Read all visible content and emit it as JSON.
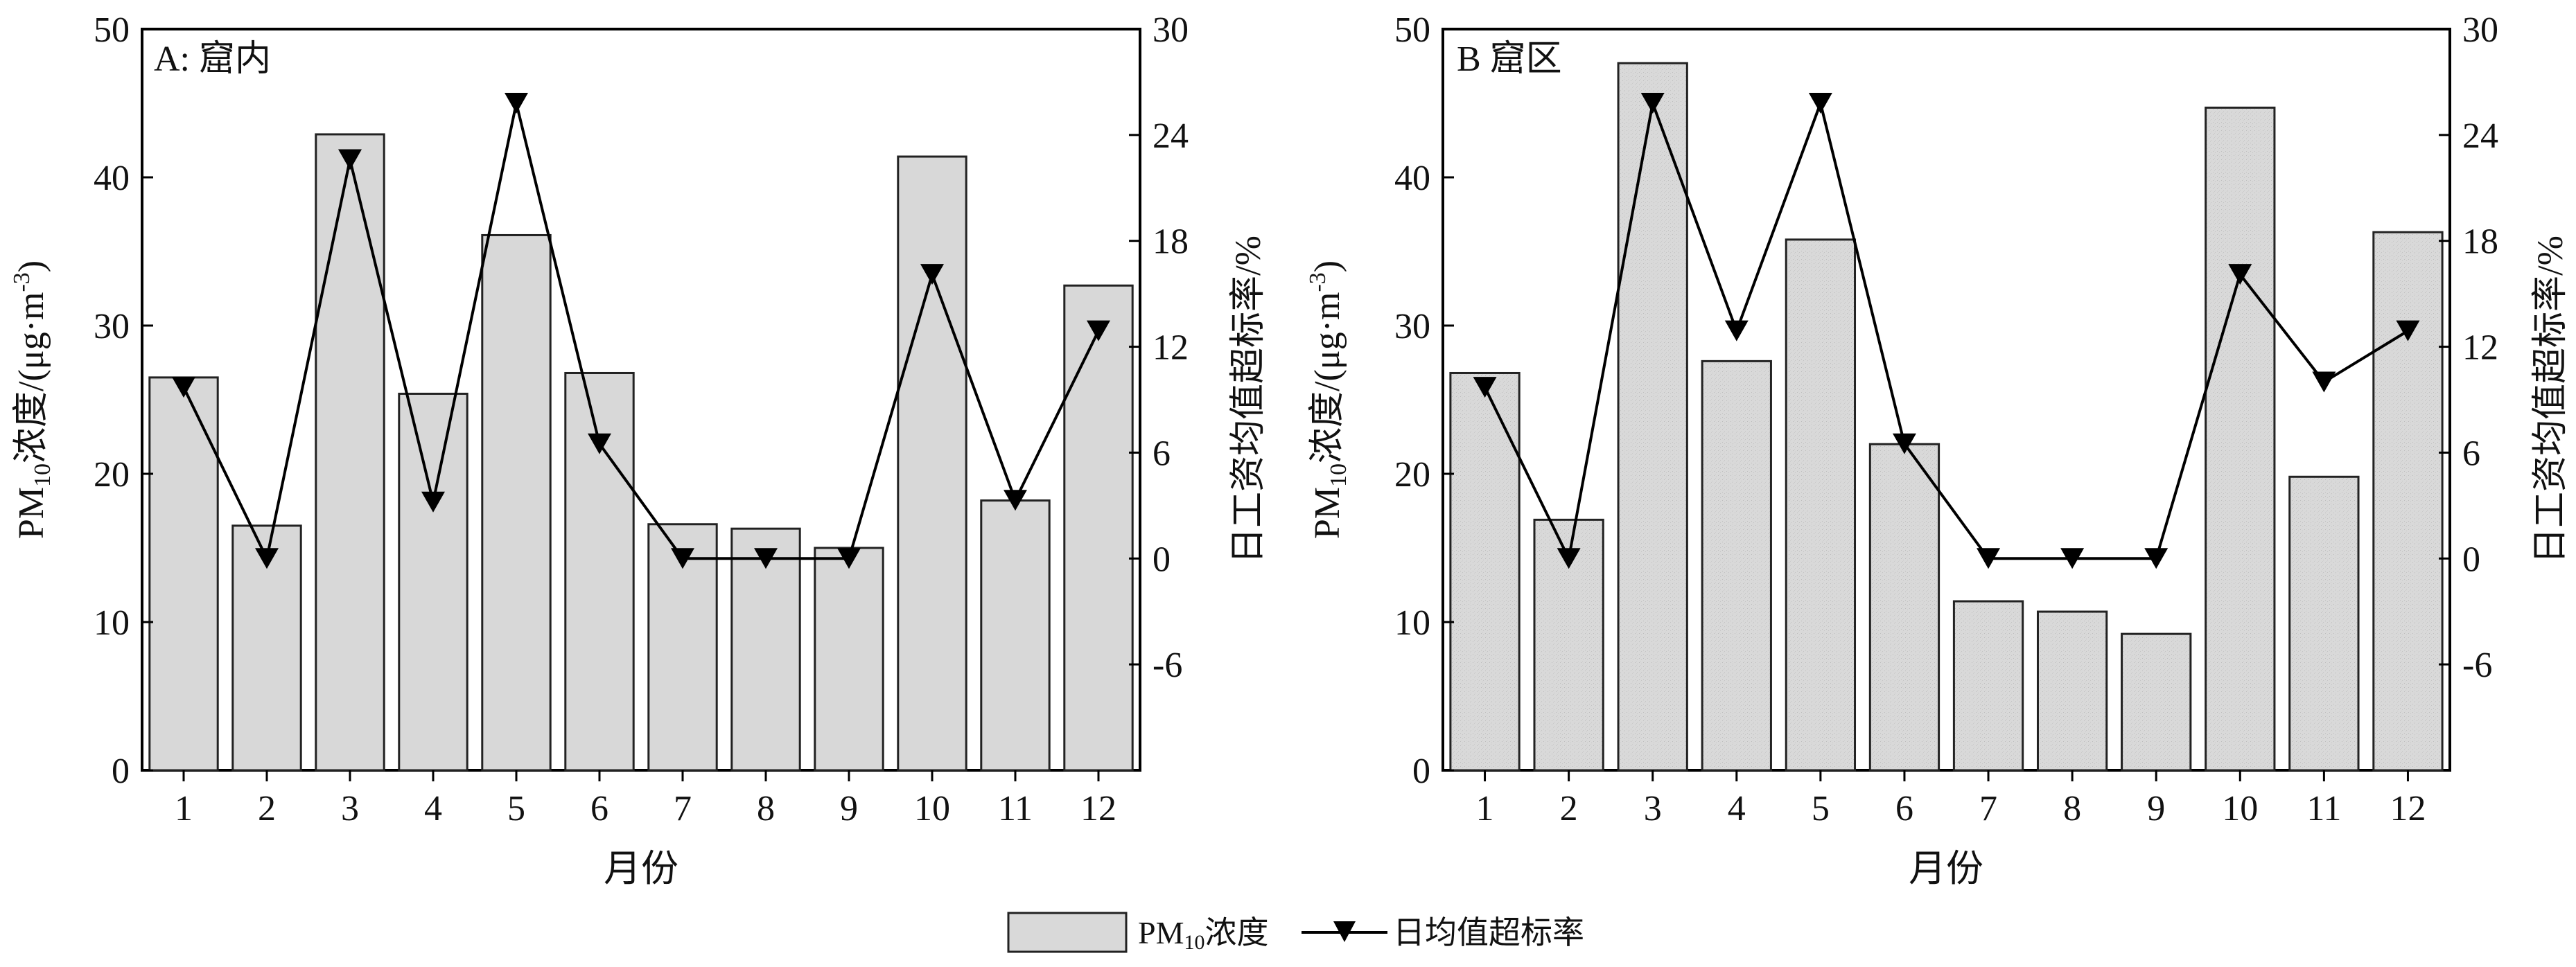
{
  "colors": {
    "bar_fill": "#d6d6d6",
    "bar_stroke": "#222222",
    "line": "#000000",
    "axis": "#000000"
  },
  "chart_data": [
    {
      "type": "bar",
      "panel_label": "A: 窟内",
      "categories": [
        "1",
        "2",
        "3",
        "4",
        "5",
        "6",
        "7",
        "8",
        "9",
        "10",
        "11",
        "12"
      ],
      "xlabel": "月份",
      "left_axis": {
        "label_prefix": "PM",
        "label_sub": "10",
        "label_main": "浓度/(μg·m",
        "label_sup": "-3",
        "label_tail": ")",
        "ylim": [
          0,
          50
        ],
        "ticks": [
          "0",
          "10",
          "20",
          "30",
          "40",
          "50"
        ]
      },
      "right_axis": {
        "label": "日工资均值超标率/%",
        "ylim": [
          -12,
          30
        ],
        "ticks": [
          "-6",
          "0",
          "6",
          "12",
          "18",
          "24",
          "30"
        ]
      },
      "series": [
        {
          "name": "PM10浓度",
          "kind": "bar",
          "axis": "left",
          "values": [
            26.5,
            16.5,
            42.9,
            25.4,
            36.1,
            26.8,
            16.6,
            16.3,
            15.0,
            41.4,
            18.2,
            32.7
          ]
        },
        {
          "name": "日均值超标率",
          "kind": "line",
          "axis": "right",
          "values": [
            9.7,
            0.0,
            22.6,
            3.2,
            25.8,
            6.5,
            0.0,
            0.0,
            0.0,
            16.1,
            3.3,
            12.9
          ]
        }
      ]
    },
    {
      "type": "bar",
      "panel_label": "B 窟区",
      "categories": [
        "1",
        "2",
        "3",
        "4",
        "5",
        "6",
        "7",
        "8",
        "9",
        "10",
        "11",
        "12"
      ],
      "xlabel": "月份",
      "left_axis": {
        "label_prefix": "PM",
        "label_sub": "10",
        "label_main": "浓度/(μg·m",
        "label_sup": "-3",
        "label_tail": ")",
        "ylim": [
          0,
          50
        ],
        "ticks": [
          "0",
          "10",
          "20",
          "30",
          "40",
          "50"
        ]
      },
      "right_axis": {
        "label": "日工资均值超标率/%",
        "ylim": [
          -12,
          30
        ],
        "ticks": [
          "-6",
          "0",
          "6",
          "12",
          "18",
          "24",
          "30"
        ]
      },
      "series": [
        {
          "name": "PM10浓度",
          "kind": "bar",
          "axis": "left",
          "values": [
            26.8,
            16.9,
            47.7,
            27.6,
            35.8,
            22.0,
            11.4,
            10.7,
            9.2,
            44.7,
            19.8,
            36.3
          ]
        },
        {
          "name": "日均值超标率",
          "kind": "line",
          "axis": "right",
          "values": [
            9.7,
            0.0,
            25.8,
            12.9,
            25.8,
            6.5,
            0.0,
            0.0,
            0.0,
            16.1,
            10.0,
            12.9
          ]
        }
      ]
    }
  ],
  "legend": {
    "bar_label_prefix": "PM",
    "bar_label_sub": "10",
    "bar_label_tail": "浓度",
    "line_label": "日均值超标率"
  }
}
